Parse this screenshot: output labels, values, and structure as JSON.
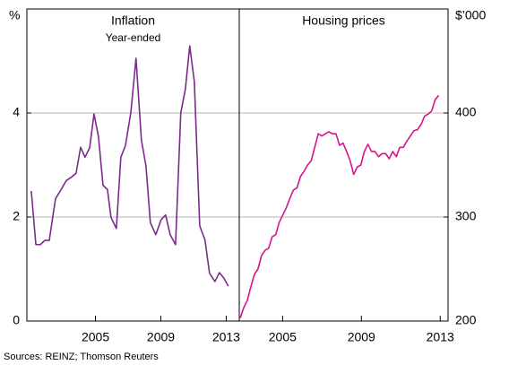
{
  "chart_data": [
    {
      "type": "line",
      "title": "Inflation",
      "subtitle": "Year-ended",
      "y_unit": "%",
      "xlim": [
        2000.8,
        2013.8
      ],
      "xticks": [
        2005,
        2009,
        2013
      ],
      "ylim": [
        0,
        6
      ],
      "yticks": [
        0,
        2,
        4
      ],
      "grid": true,
      "tick_side": "left",
      "series": [
        {
          "color": "#7b2a8c",
          "x": [
            2001.07,
            2001.35,
            2001.62,
            2001.9,
            2002.17,
            2002.55,
            2002.88,
            2003.21,
            2003.54,
            2003.81,
            2004.09,
            2004.36,
            2004.64,
            2004.91,
            2005.18,
            2005.46,
            2005.73,
            2005.95,
            2006.28,
            2006.55,
            2006.83,
            2007.16,
            2007.48,
            2007.81,
            2008.09,
            2008.36,
            2008.69,
            2009.02,
            2009.29,
            2009.57,
            2009.9,
            2010.22,
            2010.5,
            2010.77,
            2011.05,
            2011.38,
            2011.7,
            2011.98,
            2012.31,
            2012.58,
            2012.85,
            2013.13
          ],
          "values": [
            2.5,
            1.47,
            1.47,
            1.55,
            1.55,
            2.35,
            2.52,
            2.7,
            2.77,
            2.84,
            3.34,
            3.15,
            3.33,
            3.98,
            3.55,
            2.61,
            2.53,
            1.99,
            1.78,
            3.15,
            3.37,
            4.0,
            5.05,
            3.48,
            2.98,
            1.89,
            1.66,
            1.95,
            2.04,
            1.66,
            1.47,
            4.0,
            4.46,
            5.29,
            4.6,
            1.83,
            1.56,
            0.92,
            0.76,
            0.93,
            0.83,
            0.67
          ]
        }
      ]
    },
    {
      "type": "line",
      "title": "Housing prices",
      "y_unit": "$’000",
      "xlim": [
        2002.8,
        2013.4
      ],
      "xticks": [
        2005,
        2009,
        2013
      ],
      "ylim": [
        200,
        500
      ],
      "yticks": [
        200,
        300,
        400
      ],
      "grid": true,
      "tick_side": "right",
      "series": [
        {
          "color": "#d4148c",
          "x": [
            2002.85,
            2003.03,
            2003.21,
            2003.39,
            2003.57,
            2003.75,
            2003.93,
            2004.11,
            2004.29,
            2004.47,
            2004.65,
            2004.83,
            2005.01,
            2005.19,
            2005.37,
            2005.55,
            2005.73,
            2005.91,
            2006.09,
            2006.27,
            2006.45,
            2006.63,
            2006.81,
            2006.99,
            2007.17,
            2007.35,
            2007.53,
            2007.71,
            2007.89,
            2008.07,
            2008.25,
            2008.43,
            2008.61,
            2008.79,
            2008.97,
            2009.15,
            2009.33,
            2009.51,
            2009.69,
            2009.87,
            2010.05,
            2010.23,
            2010.41,
            2010.59,
            2010.77,
            2010.95,
            2011.13,
            2011.31,
            2011.49,
            2011.67,
            2011.85,
            2012.03,
            2012.21,
            2012.39,
            2012.57,
            2012.75,
            2012.93
          ],
          "values": [
            203,
            213,
            220,
            233,
            245,
            250,
            263,
            268,
            270,
            281,
            283,
            295,
            302,
            309,
            318,
            326,
            328,
            339,
            344,
            350,
            354,
            367,
            380,
            378,
            380,
            382,
            380,
            380,
            369,
            371,
            363,
            354,
            341,
            348,
            350,
            363,
            370,
            363,
            363,
            358,
            361,
            361,
            356,
            363,
            358,
            367,
            367,
            373,
            378,
            383,
            384,
            389,
            397,
            399,
            402,
            413,
            417
          ]
        }
      ]
    }
  ],
  "source": "Sources: REINZ; Thomson Reuters"
}
